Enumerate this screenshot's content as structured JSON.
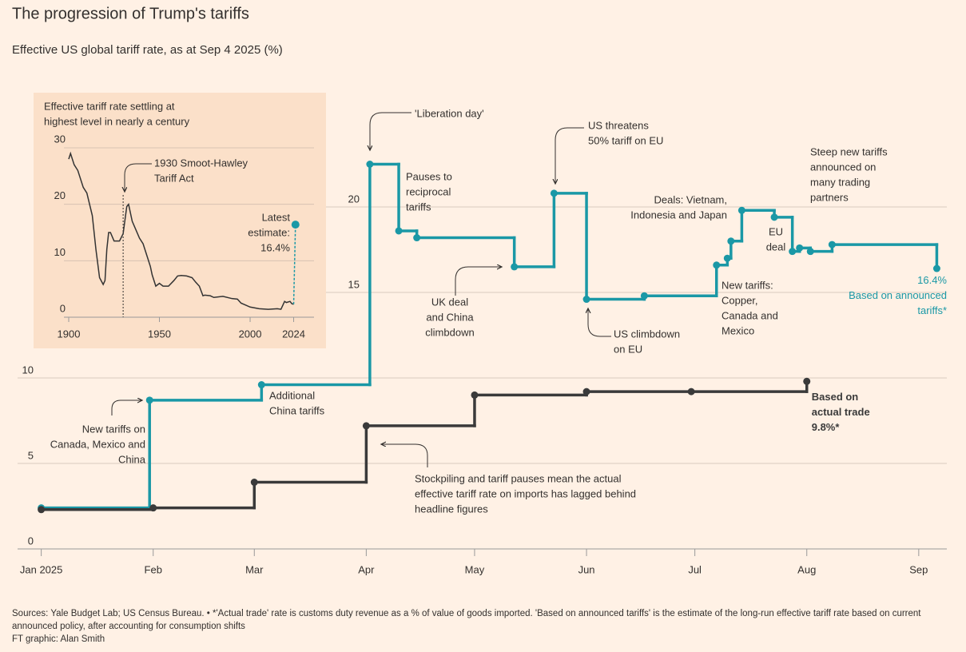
{
  "chart_data": [
    {
      "type": "line",
      "step": true,
      "title": "The progression of Trump's tariffs",
      "subtitle": "Effective US global tariff rate, as at Sep 4 2025 (%)",
      "xlim": [
        -7,
        251
      ],
      "xticks": [
        {
          "value": 0,
          "label": "Jan 2025"
        },
        {
          "value": 31,
          "label": "Feb"
        },
        {
          "value": 59,
          "label": "Mar"
        },
        {
          "value": 90,
          "label": "Apr"
        },
        {
          "value": 120,
          "label": "May"
        },
        {
          "value": 151,
          "label": "Jun"
        },
        {
          "value": 181,
          "label": "Jul"
        },
        {
          "value": 212,
          "label": "Aug"
        },
        {
          "value": 243,
          "label": "Sep"
        }
      ],
      "ylim": [
        0,
        23
      ],
      "yticks": [
        0,
        5,
        10,
        15,
        20
      ],
      "grid": true,
      "series": [
        {
          "name": "Based on announced tariffs*",
          "color": "#1a98a6",
          "x": [
            0,
            30,
            61,
            91,
            99,
            104,
            131,
            142,
            151,
            167,
            187,
            190,
            191,
            194,
            203,
            208,
            210,
            213,
            219,
            248
          ],
          "values": [
            2.4,
            8.7,
            9.6,
            22.5,
            18.6,
            18.2,
            16.5,
            20.8,
            14.6,
            14.8,
            16.6,
            17.0,
            18.0,
            19.8,
            19.4,
            17.4,
            17.6,
            17.4,
            17.8,
            16.4
          ],
          "value_labels": [
            null,
            null,
            null,
            null,
            null,
            null,
            null,
            null,
            null,
            null,
            null,
            null,
            null,
            null,
            null,
            null,
            null,
            null,
            null,
            "16.4%"
          ]
        },
        {
          "name": "Based on actual trade",
          "color": "#3a3a3a",
          "x": [
            0,
            31,
            59,
            90,
            120,
            151,
            180,
            212
          ],
          "values": [
            2.3,
            2.4,
            3.9,
            7.2,
            9.0,
            9.2,
            9.2,
            9.8
          ],
          "value_labels": [
            null,
            null,
            null,
            null,
            null,
            null,
            null,
            "9.8%*"
          ]
        }
      ],
      "annotations": [
        {
          "lines": [
            "'Liberation day'"
          ]
        },
        {
          "lines": [
            "Pauses to",
            "reciprocal",
            "tariffs"
          ]
        },
        {
          "lines": [
            "UK deal",
            "and China",
            "climbdown"
          ]
        },
        {
          "lines": [
            "US threatens",
            "50% tariff on EU"
          ]
        },
        {
          "lines": [
            "US climbdown",
            "on EU"
          ]
        },
        {
          "lines": [
            "Deals: Vietnam,",
            "Indonesia and Japan"
          ]
        },
        {
          "lines": [
            "Steep new tariffs",
            "announced on",
            "many trading",
            "partners"
          ]
        },
        {
          "lines": [
            "EU",
            "deal"
          ]
        },
        {
          "lines": [
            "New tariffs:",
            "Copper,",
            "Canada and",
            "Mexico"
          ]
        },
        {
          "lines": [
            "Additional",
            "China tariffs"
          ]
        },
        {
          "lines": [
            "New tariffs on",
            "Canada, Mexico and",
            "China"
          ]
        },
        {
          "lines": [
            "Stockpiling and tariff pauses mean the actual",
            "effective tariff rate on imports has lagged behind",
            "headline figures"
          ]
        }
      ]
    },
    {
      "type": "line",
      "title": [
        "Effective tariff rate settling at",
        "highest level in nearly a century"
      ],
      "xlim": [
        1890,
        2035
      ],
      "xticks": [
        1900,
        1950,
        2000,
        2024
      ],
      "ylim": [
        0,
        30
      ],
      "yticks": [
        0,
        10,
        20,
        30
      ],
      "color": "#333333",
      "x": [
        1900,
        1901,
        1903,
        1905,
        1908,
        1910,
        1913,
        1915,
        1917,
        1919,
        1920,
        1921,
        1922,
        1923,
        1925,
        1928,
        1930,
        1932,
        1933,
        1935,
        1937,
        1939,
        1941,
        1943,
        1945,
        1946,
        1948,
        1950,
        1952,
        1955,
        1958,
        1960,
        1962,
        1965,
        1968,
        1970,
        1972,
        1974,
        1975,
        1978,
        1980,
        1985,
        1990,
        1993,
        1995,
        2000,
        2005,
        2010,
        2015,
        2017,
        2019,
        2020,
        2022,
        2023,
        2024
      ],
      "values": [
        28,
        29,
        27,
        26,
        23,
        22,
        18,
        12,
        7,
        5.8,
        6.5,
        12,
        15,
        15,
        13.5,
        13.5,
        14.8,
        19.6,
        20,
        17,
        15.5,
        14,
        13,
        11,
        9,
        7.5,
        5.5,
        6,
        5.5,
        5.5,
        6.5,
        7.3,
        7.4,
        7.3,
        7,
        6.2,
        5.5,
        3.8,
        3.9,
        3.8,
        3.5,
        3.7,
        3.3,
        3.2,
        2.5,
        1.8,
        1.5,
        1.4,
        1.5,
        1.4,
        2.8,
        2.6,
        2.8,
        2.4,
        2.3
      ],
      "latest": {
        "x": 2025,
        "value": 16.4,
        "color": "#1a98a6",
        "label": [
          "Latest",
          "estimate:"
        ],
        "value_label": "16.4%"
      },
      "annotations": [
        {
          "x": 1930,
          "lines": [
            "1930 Smoot-Hawley",
            "Tariff Act"
          ]
        }
      ]
    }
  ],
  "footer": {
    "sources": "Sources: Yale Budget Lab; US Census Bureau. • *'Actual trade' rate is customs duty revenue as a % of value of goods imported. 'Based on announced tariffs' is the estimate of the long-run effective tariff rate based on current announced policy, after accounting for consumption shifts",
    "credit": "FT graphic: Alan Smith"
  }
}
